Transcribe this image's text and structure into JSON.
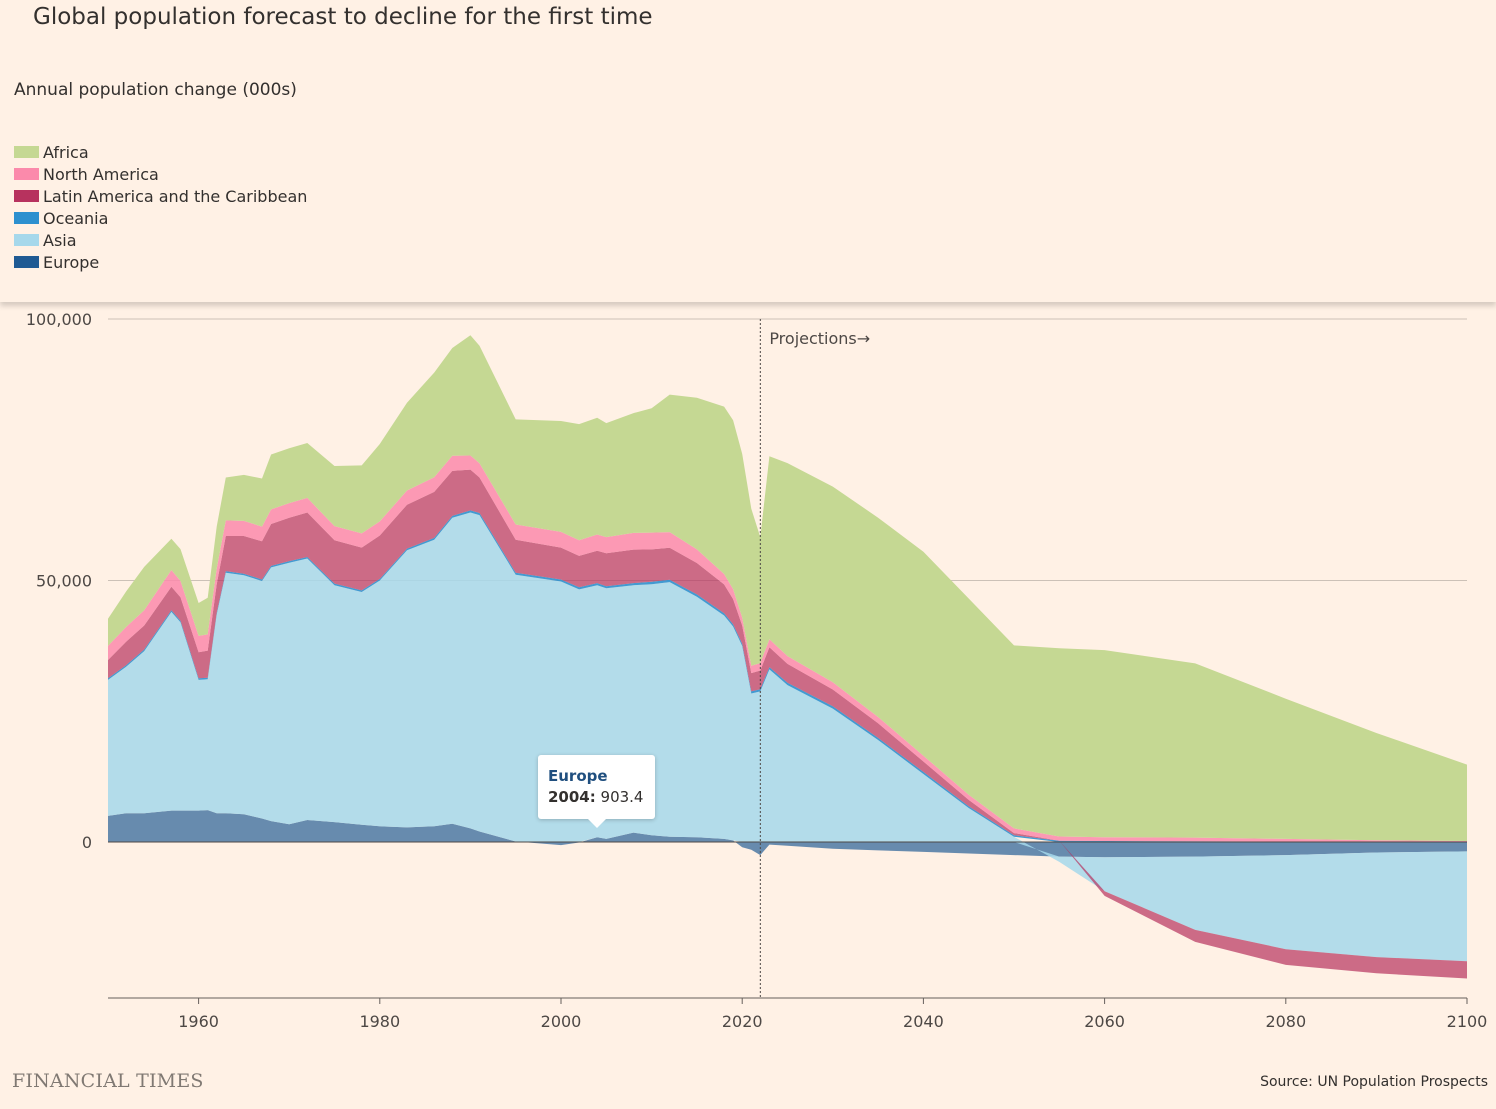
{
  "title": "Global population forecast to decline for the first time",
  "subtitle": "Annual population change (000s)",
  "legend": [
    {
      "name": "Africa",
      "color": "#c5d893"
    },
    {
      "name": "North America",
      "color": "#fb8aab"
    },
    {
      "name": "Latin America and the Caribbean",
      "color": "#b7325e"
    },
    {
      "name": "Oceania",
      "color": "#2d90cf"
    },
    {
      "name": "Asia",
      "color": "#a6d8eb"
    },
    {
      "name": "Europe",
      "color": "#1f5a93"
    }
  ],
  "projection_label": "Projections→",
  "tooltip": {
    "series": "Europe",
    "year": "2004:",
    "value": "903.4"
  },
  "footer": {
    "logo": "FINANCIAL TIMES",
    "source": "Source: UN Population Prospects"
  },
  "chart_data": {
    "type": "area",
    "stacking": "stacked, positive and negative values stacked separately around zero",
    "xlim": [
      1950,
      2100
    ],
    "ylim": [
      -30000,
      100000
    ],
    "x_ticks": [
      1960,
      1980,
      2000,
      2020,
      2040,
      2060,
      2080,
      2100
    ],
    "y_ticks": [
      0,
      50000,
      100000
    ],
    "y_tick_labels": [
      "0",
      "50,000",
      "100,000"
    ],
    "grid": "horizontal",
    "projection_start": 2022,
    "x": [
      1950,
      1952,
      1954,
      1957,
      1958,
      1960,
      1961,
      1962,
      1963,
      1965,
      1967,
      1968,
      1970,
      1972,
      1975,
      1978,
      1980,
      1983,
      1986,
      1988,
      1990,
      1991,
      1995,
      2000,
      2002,
      2004,
      2005,
      2008,
      2010,
      2012,
      2015,
      2018,
      2019,
      2020,
      2021,
      2022,
      2023,
      2025,
      2030,
      2035,
      2040,
      2045,
      2050,
      2055,
      2060,
      2070,
      2080,
      2090,
      2100
    ],
    "series": [
      {
        "name": "Europe",
        "values": [
          5000,
          5500,
          5500,
          6000,
          6000,
          6000,
          6100,
          5500,
          5500,
          5300,
          4500,
          4000,
          3400,
          4200,
          3800,
          3300,
          3000,
          2800,
          3000,
          3500,
          2600,
          2000,
          100,
          -600,
          -100,
          903.4,
          600,
          1800,
          1300,
          1000,
          900,
          600,
          300,
          -1000,
          -1500,
          -2500,
          -500,
          -700,
          -1300,
          -1600,
          -1900,
          -2200,
          -2500,
          -2800,
          -2900,
          -2800,
          -2500,
          -2000,
          -1800
        ]
      },
      {
        "name": "Asia",
        "values": [
          26000,
          28000,
          31000,
          38000,
          36000,
          25000,
          25000,
          38000,
          46000,
          45700,
          45400,
          48500,
          50000,
          50000,
          45300,
          44500,
          47000,
          53000,
          54800,
          58500,
          60400,
          60500,
          51000,
          49800,
          48300,
          48200,
          47900,
          47300,
          48000,
          48700,
          46000,
          42700,
          40900,
          37500,
          28400,
          28800,
          33000,
          30000,
          25500,
          19500,
          13000,
          6500,
          1000,
          -1000,
          -6500,
          -14000,
          -18000,
          -20000,
          -21000
        ]
      },
      {
        "name": "Oceania",
        "values": [
          300,
          300,
          300,
          300,
          300,
          300,
          300,
          300,
          300,
          300,
          300,
          300,
          300,
          300,
          300,
          300,
          300,
          300,
          350,
          350,
          400,
          400,
          400,
          400,
          400,
          400,
          400,
          400,
          450,
          450,
          450,
          450,
          450,
          400,
          400,
          400,
          450,
          450,
          450,
          400,
          400,
          350,
          300,
          250,
          200,
          150,
          100,
          50,
          0
        ]
      },
      {
        "name": "Latin America and the Caribbean",
        "values": [
          3500,
          4500,
          4600,
          4500,
          4500,
          5000,
          5200,
          5500,
          6700,
          7200,
          7300,
          8000,
          8300,
          8500,
          8300,
          8200,
          8300,
          8400,
          8800,
          8600,
          7800,
          6800,
          6300,
          6100,
          6000,
          6200,
          6300,
          6400,
          6200,
          6100,
          6000,
          5500,
          4800,
          3500,
          3500,
          3600,
          3800,
          3600,
          3200,
          2800,
          2000,
          1200,
          400,
          0,
          -900,
          -2300,
          -3000,
          -3100,
          -3300
        ]
      },
      {
        "name": "North America",
        "values": [
          2700,
          2800,
          2900,
          3200,
          3100,
          3100,
          3100,
          3000,
          3000,
          2900,
          2800,
          2800,
          2800,
          2800,
          2700,
          2700,
          2700,
          2700,
          2800,
          2900,
          2700,
          2700,
          2900,
          3000,
          3000,
          3100,
          3100,
          3200,
          3200,
          3000,
          2600,
          2000,
          1900,
          1500,
          1400,
          1400,
          1500,
          1500,
          1400,
          1200,
          1100,
          1000,
          900,
          800,
          700,
          700,
          500,
          300,
          200
        ]
      },
      {
        "name": "Africa",
        "values": [
          5200,
          6800,
          8300,
          6000,
          6100,
          6300,
          7000,
          8000,
          8200,
          8800,
          9200,
          10500,
          10500,
          10500,
          11500,
          13000,
          14800,
          16800,
          20000,
          20600,
          23000,
          22500,
          20100,
          21200,
          22200,
          22300,
          21800,
          22900,
          23800,
          26300,
          29000,
          32000,
          32300,
          31300,
          30000,
          24100,
          35000,
          36900,
          37400,
          38100,
          39000,
          37500,
          35000,
          36000,
          35800,
          33300,
          26800,
          20500,
          14600
        ]
      }
    ]
  }
}
